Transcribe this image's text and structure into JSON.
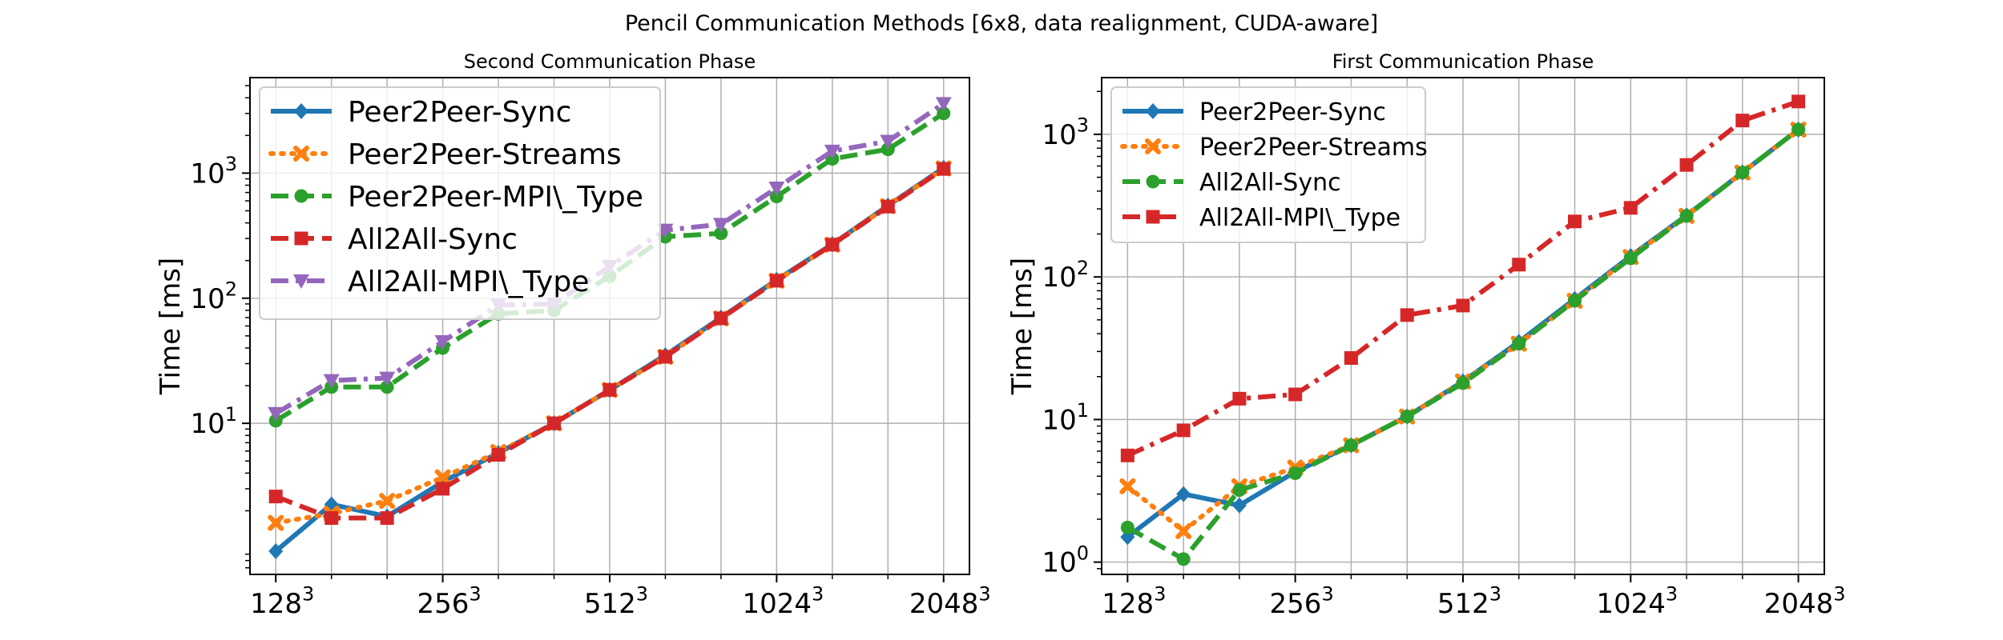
{
  "figure": {
    "suptitle": "Pencil Communication Methods [6x8, data realignment, CUDA-aware]"
  },
  "chart_data": [
    {
      "type": "line",
      "title": "Second Communication Phase",
      "xlabel": "",
      "ylabel": "Time [ms]",
      "x_scale": "log2",
      "y_scale": "log10",
      "x": [
        128,
        161.3,
        203.2,
        256,
        322.5,
        406.4,
        512,
        645.1,
        812.7,
        1024,
        1290.2,
        1625.5,
        2048
      ],
      "xlim": [
        115,
        2280
      ],
      "ylim": [
        0.62,
        5800
      ],
      "x_ticks": [
        128,
        256,
        512,
        1024,
        2048
      ],
      "x_tick_labels": [
        {
          "base": "128",
          "exp": "3"
        },
        {
          "base": "256",
          "exp": "3"
        },
        {
          "base": "512",
          "exp": "3"
        },
        {
          "base": "1024",
          "exp": "3"
        },
        {
          "base": "2048",
          "exp": "3"
        }
      ],
      "y_ticks": [
        10,
        100,
        1000
      ],
      "y_tick_labels": [
        {
          "base": "10",
          "exp": "1"
        },
        {
          "base": "10",
          "exp": "2"
        },
        {
          "base": "10",
          "exp": "3"
        }
      ],
      "grid": true,
      "legend_position": "top-left",
      "series": [
        {
          "name": "Peer2Peer-Sync",
          "color": "#1f77b4",
          "dash": "solid",
          "marker": "diamond",
          "values": [
            0.95,
            2.25,
            1.8,
            3.4,
            5.8,
            10,
            18.5,
            35,
            70,
            140,
            270,
            550,
            1100
          ]
        },
        {
          "name": "Peer2Peer-Streams",
          "color": "#ff7f0e",
          "dash": "dotted",
          "marker": "x",
          "values": [
            1.6,
            1.9,
            2.4,
            3.7,
            5.9,
            10,
            18.5,
            34,
            69,
            138,
            268,
            545,
            1090
          ]
        },
        {
          "name": "Peer2Peer-MPI\\_Type",
          "color": "#2ca02c",
          "dash": "dashed",
          "marker": "circle",
          "values": [
            10.5,
            19.5,
            19.5,
            40,
            75,
            80,
            150,
            310,
            330,
            650,
            1300,
            1550,
            3000
          ]
        },
        {
          "name": "All2All-Sync",
          "color": "#d62728",
          "dash": "dashed",
          "marker": "square",
          "values": [
            2.6,
            1.75,
            1.75,
            3.0,
            5.6,
            10,
            18.5,
            34,
            69,
            138,
            268,
            540,
            1080
          ]
        },
        {
          "name": "All2All-MPI\\_Type",
          "color": "#9467bd",
          "dash": "dashdot",
          "marker": "triangle",
          "values": [
            12,
            22,
            23,
            45,
            88,
            90,
            180,
            350,
            390,
            760,
            1500,
            1800,
            3600
          ]
        }
      ]
    },
    {
      "type": "line",
      "title": "First Communication Phase",
      "xlabel": "",
      "ylabel": "Time [ms]",
      "x_scale": "log2",
      "y_scale": "log10",
      "x": [
        128,
        161.3,
        203.2,
        256,
        322.5,
        406.4,
        512,
        645.1,
        812.7,
        1024,
        1290.2,
        1625.5,
        2048
      ],
      "xlim": [
        115,
        2280
      ],
      "ylim": [
        0.82,
        2500
      ],
      "x_ticks": [
        128,
        256,
        512,
        1024,
        2048
      ],
      "x_tick_labels": [
        {
          "base": "128",
          "exp": "3"
        },
        {
          "base": "256",
          "exp": "3"
        },
        {
          "base": "512",
          "exp": "3"
        },
        {
          "base": "1024",
          "exp": "3"
        },
        {
          "base": "2048",
          "exp": "3"
        }
      ],
      "y_ticks": [
        1,
        10,
        100,
        1000
      ],
      "y_tick_labels": [
        {
          "base": "10",
          "exp": "0"
        },
        {
          "base": "10",
          "exp": "1"
        },
        {
          "base": "10",
          "exp": "2"
        },
        {
          "base": "10",
          "exp": "3"
        }
      ],
      "grid": true,
      "legend_position": "top-left",
      "series": [
        {
          "name": "Peer2Peer-Sync",
          "color": "#1f77b4",
          "dash": "solid",
          "marker": "diamond",
          "values": [
            1.5,
            3.0,
            2.5,
            4.3,
            6.6,
            10.5,
            18.5,
            35,
            70,
            140,
            270,
            540,
            1080
          ]
        },
        {
          "name": "Peer2Peer-Streams",
          "color": "#ff7f0e",
          "dash": "dotted",
          "marker": "x",
          "values": [
            3.4,
            1.65,
            3.4,
            4.6,
            6.6,
            10.5,
            18.5,
            34,
            68,
            138,
            268,
            540,
            1080
          ]
        },
        {
          "name": "All2All-Sync",
          "color": "#2ca02c",
          "dash": "dashed",
          "marker": "circle",
          "values": [
            1.75,
            1.05,
            3.2,
            4.2,
            6.6,
            10.5,
            18.0,
            34,
            68,
            135,
            268,
            540,
            1080
          ]
        },
        {
          "name": "All2All-MPI\\_Type",
          "color": "#d62728",
          "dash": "dashdot",
          "marker": "square",
          "values": [
            5.6,
            8.4,
            14,
            15,
            27,
            54,
            63,
            122,
            245,
            305,
            610,
            1250,
            1700
          ]
        }
      ]
    }
  ]
}
